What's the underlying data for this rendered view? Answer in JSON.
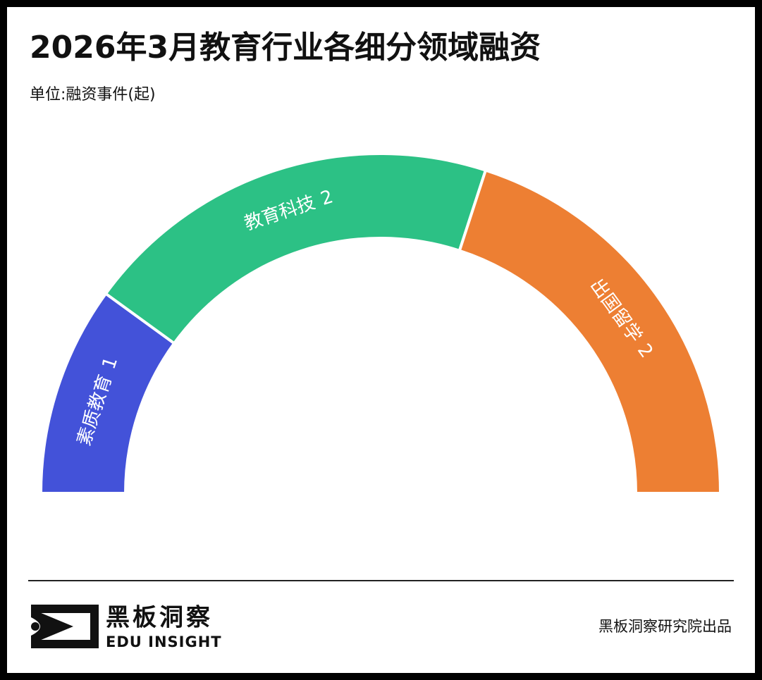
{
  "chart_data": {
    "type": "semi-donut",
    "title": "2026年3月教育行业各细分领域融资",
    "subtitle": "单位:融资事件(起)",
    "categories": [
      "素质教育",
      "教育科技",
      "出国留学"
    ],
    "values": [
      1,
      2,
      2
    ],
    "colors": [
      "#4352d9",
      "#2cc185",
      "#ed7f33"
    ]
  },
  "footer": {
    "brand": "黑板洞察",
    "brand_en": "EDU INSIGHT",
    "credit": "黑板洞察研究院出品"
  }
}
